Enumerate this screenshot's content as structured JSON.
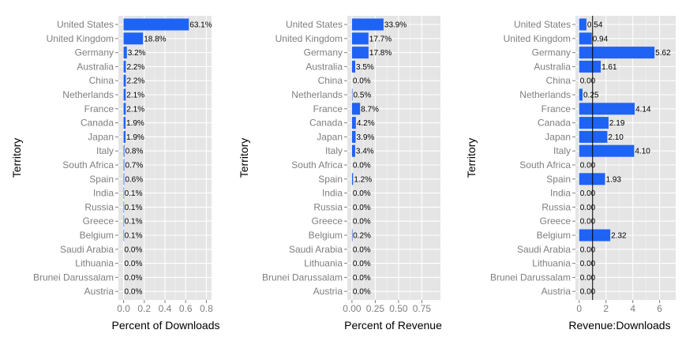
{
  "chart_data": [
    {
      "type": "bar",
      "orientation": "horizontal",
      "categories": [
        "United States",
        "United Kingdom",
        "Germany",
        "Australia",
        "China",
        "Netherlands",
        "France",
        "Canada",
        "Japan",
        "Italy",
        "South Africa",
        "Spain",
        "India",
        "Russia",
        "Greece",
        "Belgium",
        "Saudi Arabia",
        "Lithuania",
        "Brunei Darussalam",
        "Austria"
      ],
      "values": [
        0.631,
        0.188,
        0.032,
        0.022,
        0.022,
        0.021,
        0.021,
        0.019,
        0.019,
        0.008,
        0.007,
        0.006,
        0.001,
        0.001,
        0.001,
        0.001,
        0.0,
        0.0,
        0.0,
        0.0
      ],
      "data_labels": [
        "63.1%",
        "18.8%",
        "3.2%",
        "2.2%",
        "2.2%",
        "2.1%",
        "2.1%",
        "1.9%",
        "1.9%",
        "0.8%",
        "0.7%",
        "0.6%",
        "0.1%",
        "0.1%",
        "0.1%",
        "0.1%",
        "0.0%",
        "0.0%",
        "0.0%",
        "0.0%"
      ],
      "xlabel": "Percent of Downloads",
      "ylabel": "Territory",
      "xlim": [
        -0.05,
        0.85
      ],
      "xticks": [
        0.0,
        0.2,
        0.4,
        0.6,
        0.8
      ],
      "xtick_labels": [
        "0.0",
        "0.2",
        "0.4",
        "0.6",
        "0.8"
      ],
      "grid": true,
      "bar_color": "#1f63f5"
    },
    {
      "type": "bar",
      "orientation": "horizontal",
      "categories": [
        "United States",
        "United Kingdom",
        "Germany",
        "Australia",
        "China",
        "Netherlands",
        "France",
        "Canada",
        "Japan",
        "Italy",
        "South Africa",
        "Spain",
        "India",
        "Russia",
        "Greece",
        "Belgium",
        "Saudi Arabia",
        "Lithuania",
        "Brunei Darussalam",
        "Austria"
      ],
      "values": [
        0.339,
        0.177,
        0.178,
        0.035,
        0.0,
        0.005,
        0.087,
        0.042,
        0.039,
        0.034,
        0.0,
        0.012,
        0.0,
        0.0,
        0.0,
        0.002,
        0.0,
        0.0,
        0.0,
        0.0
      ],
      "data_labels": [
        "33.9%",
        "17.7%",
        "17.8%",
        "3.5%",
        "0.0%",
        "0.5%",
        "8.7%",
        "4.2%",
        "3.9%",
        "3.4%",
        "0.0%",
        "1.2%",
        "0.0%",
        "0.0%",
        "0.0%",
        "0.2%",
        "0.0%",
        "0.0%",
        "0.0%",
        "0.0%"
      ],
      "xlabel": "Percent of Revenue",
      "ylabel": "Territory",
      "xlim": [
        -0.05,
        0.95
      ],
      "xticks": [
        0.0,
        0.25,
        0.5,
        0.75
      ],
      "xtick_labels": [
        "0.00",
        "0.25",
        "0.50",
        "0.75"
      ],
      "grid": true,
      "bar_color": "#1f63f5"
    },
    {
      "type": "bar",
      "orientation": "horizontal",
      "categories": [
        "United States",
        "United Kingdom",
        "Germany",
        "Australia",
        "China",
        "Netherlands",
        "France",
        "Canada",
        "Japan",
        "Italy",
        "South Africa",
        "Spain",
        "India",
        "Russia",
        "Greece",
        "Belgium",
        "Saudi Arabia",
        "Lithuania",
        "Brunei Darussalam",
        "Austria"
      ],
      "values": [
        0.54,
        0.94,
        5.62,
        1.61,
        0.0,
        0.25,
        4.14,
        2.19,
        2.1,
        4.1,
        0.0,
        1.93,
        0.0,
        0.0,
        0.0,
        2.32,
        0.0,
        0.0,
        0.0,
        0.0
      ],
      "data_labels": [
        "0.54",
        "0.94",
        "5.62",
        "1.61",
        "0.00",
        "0.25",
        "4.14",
        "2.19",
        "2.10",
        "4.10",
        "0.00",
        "1.93",
        "0.00",
        "0.00",
        "0.00",
        "2.32",
        "0.00",
        "0.00",
        "0.00",
        "0.00"
      ],
      "xlabel": "Revenue:Downloads",
      "ylabel": "Territory",
      "xlim": [
        -0.28,
        7.2
      ],
      "xticks": [
        0,
        2,
        4,
        6
      ],
      "xtick_labels": [
        "0",
        "2",
        "4",
        "6"
      ],
      "grid": true,
      "bar_color": "#1f63f5",
      "reference_line": 1
    }
  ]
}
